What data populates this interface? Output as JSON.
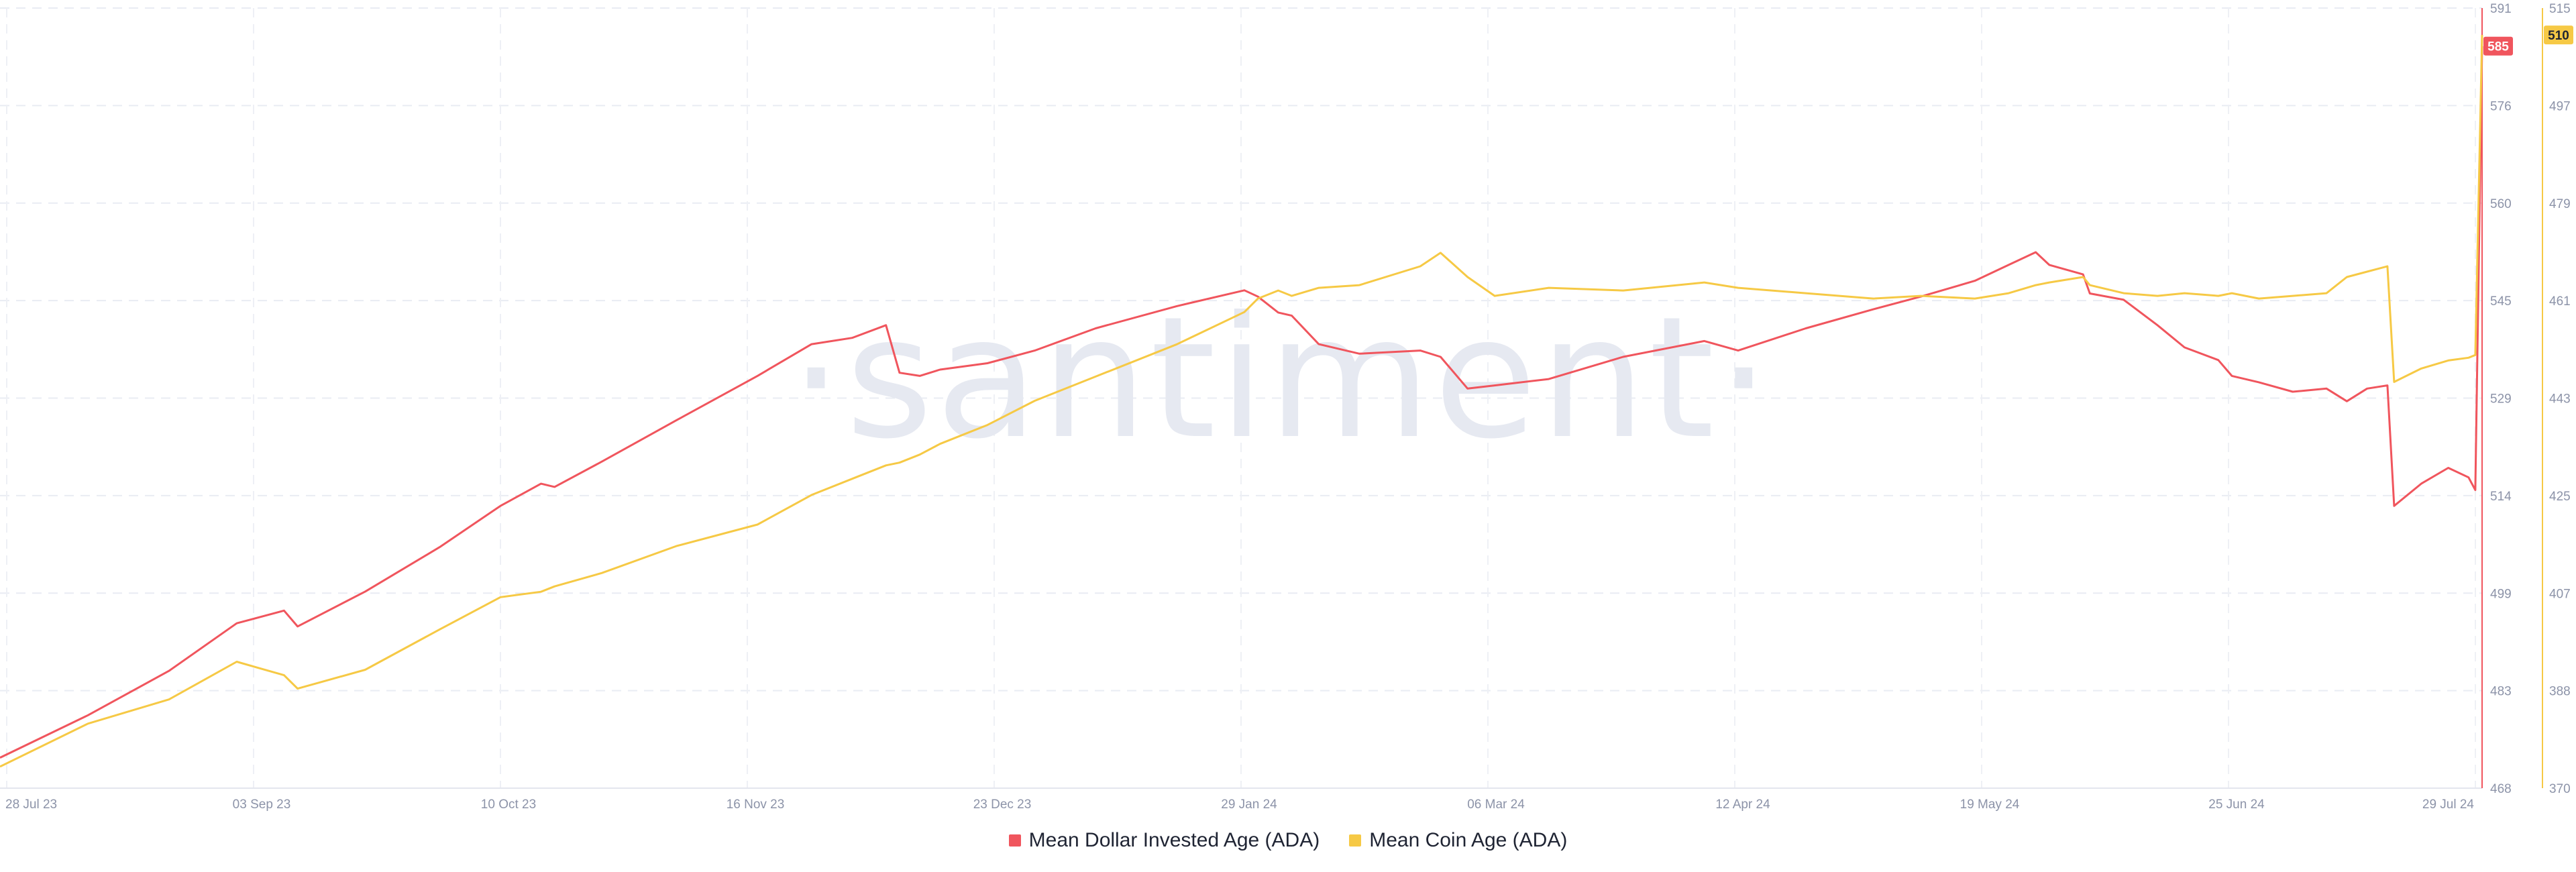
{
  "watermark": "·santiment·",
  "legend": [
    {
      "label": "Mean Dollar Invested Age (ADA)",
      "color": "#f0555d"
    },
    {
      "label": "Mean Coin Age (ADA)",
      "color": "#f6c945"
    }
  ],
  "chart_data": {
    "type": "line",
    "title": "",
    "grid": true,
    "legend_position": "bottom",
    "x_ticks": [
      "28 Jul 23",
      "03 Sep 23",
      "10 Oct 23",
      "16 Nov 23",
      "23 Dec 23",
      "29 Jan 24",
      "06 Mar 24",
      "12 Apr 24",
      "19 May 24",
      "25 Jun 24",
      "29 Jul 24"
    ],
    "xlim": [
      "2023-07-28",
      "2024-07-29"
    ],
    "y_left": {
      "ticks": [
        "468",
        "483",
        "499",
        "514",
        "529",
        "545",
        "560",
        "576",
        "591"
      ],
      "ylim": [
        468,
        591
      ],
      "axis_color": "#f0555d",
      "current_value": "585"
    },
    "y_right": {
      "ticks": [
        "370",
        "388",
        "407",
        "425",
        "443",
        "461",
        "479",
        "497",
        "515"
      ],
      "ylim": [
        370,
        515
      ],
      "axis_color": "#f6c945",
      "current_value": "510"
    },
    "series": [
      {
        "name": "Mean Dollar Invested Age (ADA)",
        "color": "#f0555d",
        "axis": "left",
        "points": [
          [
            "2023-07-28",
            472.8
          ],
          [
            "2023-08-10",
            479.5
          ],
          [
            "2023-08-22",
            486.5
          ],
          [
            "2023-09-01",
            494.0
          ],
          [
            "2023-09-08",
            496.0
          ],
          [
            "2023-09-10",
            493.5
          ],
          [
            "2023-09-20",
            499.0
          ],
          [
            "2023-10-01",
            506.0
          ],
          [
            "2023-10-10",
            512.5
          ],
          [
            "2023-10-16",
            516.0
          ],
          [
            "2023-10-18",
            515.5
          ],
          [
            "2023-10-25",
            519.5
          ],
          [
            "2023-11-05",
            526.0
          ],
          [
            "2023-11-17",
            533.0
          ],
          [
            "2023-11-25",
            538.0
          ],
          [
            "2023-12-01",
            539.0
          ],
          [
            "2023-12-06",
            541.0
          ],
          [
            "2023-12-08",
            533.5
          ],
          [
            "2023-12-11",
            533.0
          ],
          [
            "2023-12-14",
            534.0
          ],
          [
            "2023-12-21",
            535.0
          ],
          [
            "2023-12-28",
            537.0
          ],
          [
            "2024-01-06",
            540.5
          ],
          [
            "2024-01-18",
            544.0
          ],
          [
            "2024-01-28",
            546.5
          ],
          [
            "2024-01-30",
            545.5
          ],
          [
            "2024-02-02",
            543.0
          ],
          [
            "2024-02-04",
            542.5
          ],
          [
            "2024-02-08",
            538.0
          ],
          [
            "2024-02-14",
            536.5
          ],
          [
            "2024-02-23",
            537.0
          ],
          [
            "2024-02-26",
            536.0
          ],
          [
            "2024-03-01",
            531.0
          ],
          [
            "2024-03-05",
            531.5
          ],
          [
            "2024-03-13",
            532.5
          ],
          [
            "2024-03-24",
            536.0
          ],
          [
            "2024-04-05",
            538.5
          ],
          [
            "2024-04-10",
            537.0
          ],
          [
            "2024-04-20",
            540.5
          ],
          [
            "2024-04-30",
            543.5
          ],
          [
            "2024-05-07",
            545.5
          ],
          [
            "2024-05-15",
            548.0
          ],
          [
            "2024-05-20",
            550.5
          ],
          [
            "2024-05-24",
            552.5
          ],
          [
            "2024-05-26",
            550.5
          ],
          [
            "2024-05-31",
            549.0
          ],
          [
            "2024-06-01",
            546.0
          ],
          [
            "2024-06-06",
            545.0
          ],
          [
            "2024-06-11",
            541.0
          ],
          [
            "2024-06-15",
            537.5
          ],
          [
            "2024-06-20",
            535.5
          ],
          [
            "2024-06-22",
            533.0
          ],
          [
            "2024-06-26",
            532.0
          ],
          [
            "2024-07-01",
            530.5
          ],
          [
            "2024-07-06",
            531.0
          ],
          [
            "2024-07-09",
            529.0
          ],
          [
            "2024-07-12",
            531.0
          ],
          [
            "2024-07-15",
            531.5
          ],
          [
            "2024-07-16",
            512.5
          ],
          [
            "2024-07-20",
            516.0
          ],
          [
            "2024-07-24",
            518.5
          ],
          [
            "2024-07-27",
            517.0
          ],
          [
            "2024-07-28",
            515.0
          ],
          [
            "2024-07-29",
            585.0
          ]
        ]
      },
      {
        "name": "Mean Coin Age (ADA)",
        "color": "#f6c945",
        "axis": "right",
        "points": [
          [
            "2023-07-28",
            374.0
          ],
          [
            "2023-08-10",
            382.0
          ],
          [
            "2023-08-22",
            386.5
          ],
          [
            "2023-09-01",
            393.5
          ],
          [
            "2023-09-08",
            391.0
          ],
          [
            "2023-09-10",
            388.5
          ],
          [
            "2023-09-20",
            392.0
          ],
          [
            "2023-10-01",
            399.5
          ],
          [
            "2023-10-10",
            405.5
          ],
          [
            "2023-10-16",
            406.5
          ],
          [
            "2023-10-18",
            407.5
          ],
          [
            "2023-10-25",
            410.0
          ],
          [
            "2023-11-05",
            415.0
          ],
          [
            "2023-11-17",
            419.0
          ],
          [
            "2023-11-25",
            424.5
          ],
          [
            "2023-12-01",
            427.5
          ],
          [
            "2023-12-06",
            430.0
          ],
          [
            "2023-12-08",
            430.5
          ],
          [
            "2023-12-11",
            432.0
          ],
          [
            "2023-12-14",
            434.0
          ],
          [
            "2023-12-21",
            437.5
          ],
          [
            "2023-12-28",
            442.0
          ],
          [
            "2024-01-06",
            446.5
          ],
          [
            "2024-01-18",
            452.5
          ],
          [
            "2024-01-28",
            458.5
          ],
          [
            "2024-01-30",
            461.0
          ],
          [
            "2024-02-02",
            462.5
          ],
          [
            "2024-02-04",
            461.5
          ],
          [
            "2024-02-08",
            463.0
          ],
          [
            "2024-02-14",
            463.5
          ],
          [
            "2024-02-23",
            467.0
          ],
          [
            "2024-02-26",
            469.5
          ],
          [
            "2024-03-01",
            465.0
          ],
          [
            "2024-03-05",
            461.5
          ],
          [
            "2024-03-13",
            463.0
          ],
          [
            "2024-03-24",
            462.5
          ],
          [
            "2024-04-05",
            464.0
          ],
          [
            "2024-04-10",
            463.0
          ],
          [
            "2024-04-20",
            462.0
          ],
          [
            "2024-04-30",
            461.0
          ],
          [
            "2024-05-07",
            461.5
          ],
          [
            "2024-05-15",
            461.0
          ],
          [
            "2024-05-20",
            462.0
          ],
          [
            "2024-05-24",
            463.5
          ],
          [
            "2024-05-26",
            464.0
          ],
          [
            "2024-05-31",
            465.0
          ],
          [
            "2024-06-01",
            463.5
          ],
          [
            "2024-06-06",
            462.0
          ],
          [
            "2024-06-11",
            461.5
          ],
          [
            "2024-06-15",
            462.0
          ],
          [
            "2024-06-20",
            461.5
          ],
          [
            "2024-06-22",
            462.0
          ],
          [
            "2024-06-26",
            461.0
          ],
          [
            "2024-07-01",
            461.5
          ],
          [
            "2024-07-06",
            462.0
          ],
          [
            "2024-07-09",
            465.0
          ],
          [
            "2024-07-12",
            466.0
          ],
          [
            "2024-07-15",
            467.0
          ],
          [
            "2024-07-16",
            445.5
          ],
          [
            "2024-07-20",
            448.0
          ],
          [
            "2024-07-24",
            449.5
          ],
          [
            "2024-07-27",
            450.0
          ],
          [
            "2024-07-28",
            450.5
          ],
          [
            "2024-07-29",
            510.0
          ]
        ]
      }
    ]
  }
}
